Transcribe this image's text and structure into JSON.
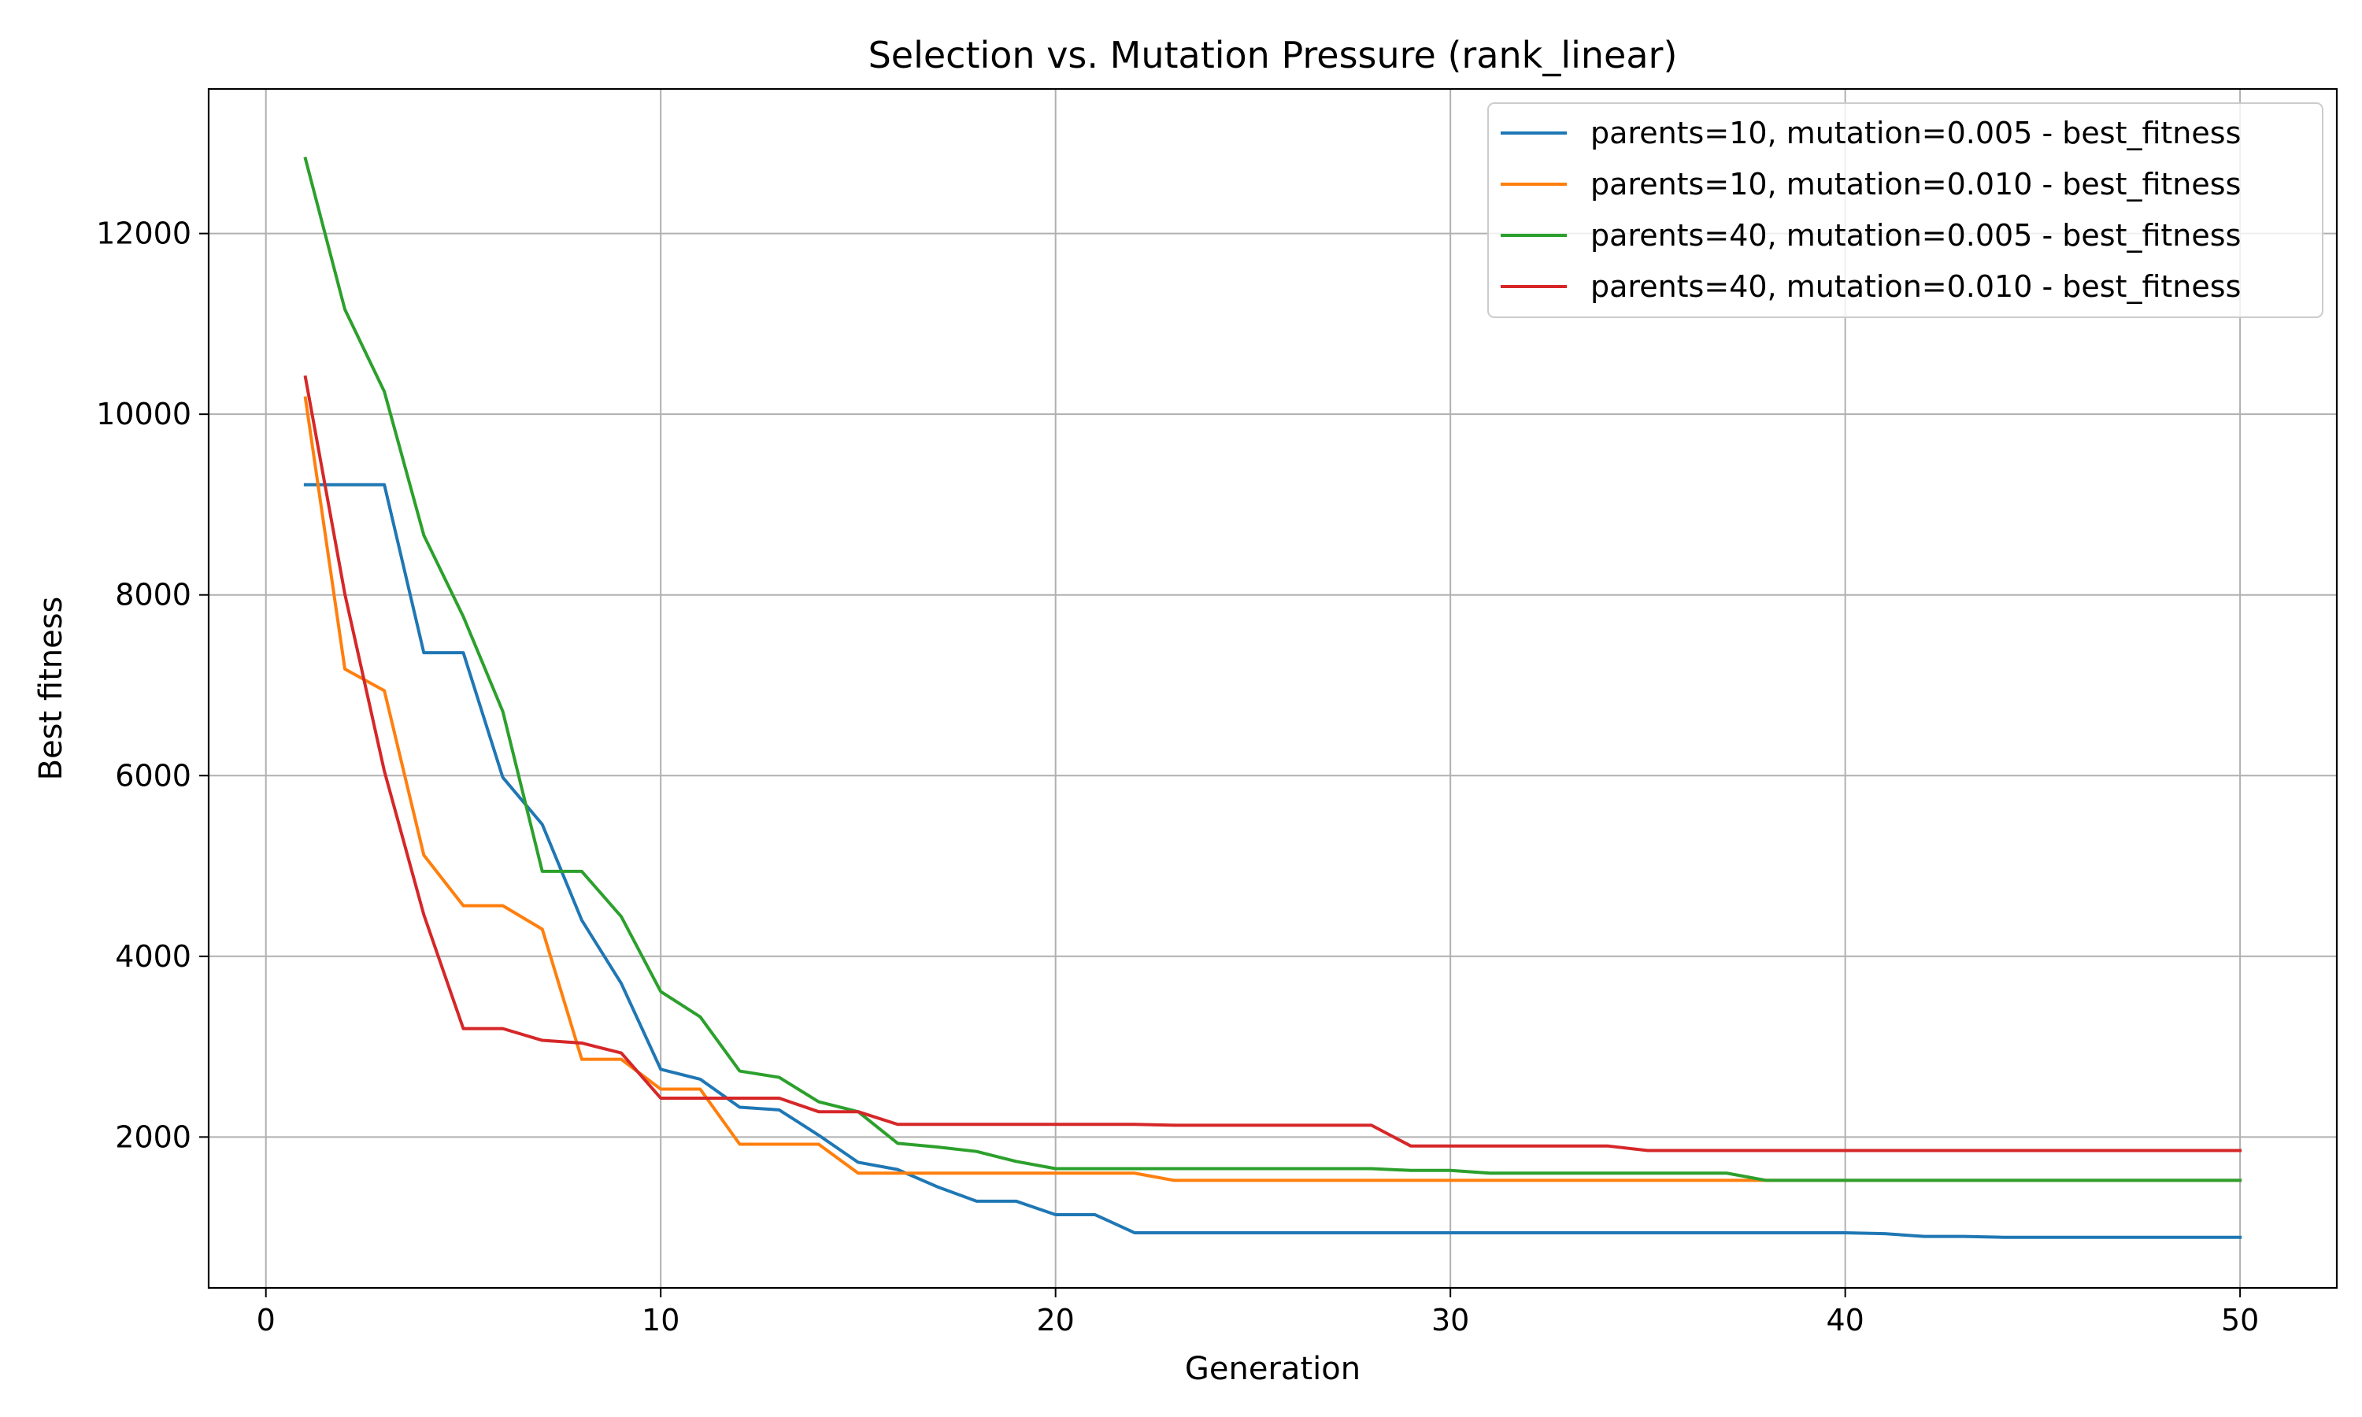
{
  "chart_data": {
    "type": "line",
    "title": "Selection vs. Mutation Pressure (rank_linear)",
    "xlabel": "Generation",
    "ylabel": "Best fitness",
    "xlim": [
      -1.45,
      52.45
    ],
    "ylim": [
      330,
      13600
    ],
    "xticks": [
      0,
      10,
      20,
      30,
      40,
      50
    ],
    "yticks": [
      2000,
      4000,
      6000,
      8000,
      10000,
      12000
    ],
    "grid": true,
    "legend_position": "top-right",
    "x": [
      1,
      2,
      3,
      4,
      5,
      6,
      7,
      8,
      9,
      10,
      11,
      12,
      13,
      14,
      15,
      16,
      17,
      18,
      19,
      20,
      21,
      22,
      23,
      24,
      25,
      26,
      27,
      28,
      29,
      30,
      31,
      32,
      33,
      34,
      35,
      36,
      37,
      38,
      39,
      40,
      41,
      42,
      43,
      44,
      45,
      46,
      47,
      48,
      49,
      50
    ],
    "series": [
      {
        "name": "parents=10, mutation=0.005 - best_fitness",
        "color": "#1f77b4",
        "values": [
          9220,
          9220,
          9220,
          7360,
          7360,
          5980,
          5460,
          4400,
          3700,
          2750,
          2640,
          2330,
          2300,
          2020,
          1720,
          1640,
          1450,
          1290,
          1290,
          1140,
          1140,
          940,
          940,
          940,
          940,
          940,
          940,
          940,
          940,
          940,
          940,
          940,
          940,
          940,
          940,
          940,
          940,
          940,
          940,
          940,
          930,
          900,
          900,
          890,
          890,
          890,
          890,
          890,
          890,
          890
        ]
      },
      {
        "name": "parents=10, mutation=0.010 - best_fitness",
        "color": "#ff7f0e",
        "values": [
          10180,
          7180,
          6940,
          5120,
          4560,
          4560,
          4300,
          2860,
          2860,
          2530,
          2530,
          1920,
          1920,
          1920,
          1600,
          1600,
          1600,
          1600,
          1600,
          1600,
          1600,
          1600,
          1520,
          1520,
          1520,
          1520,
          1520,
          1520,
          1520,
          1520,
          1520,
          1520,
          1520,
          1520,
          1520,
          1520,
          1520,
          1520,
          1520,
          1520,
          1520,
          1520,
          1520,
          1520,
          1520,
          1520,
          1520,
          1520,
          1520,
          1520
        ]
      },
      {
        "name": "parents=40, mutation=0.005 - best_fitness",
        "color": "#2ca02c",
        "values": [
          12830,
          11160,
          10250,
          8660,
          7760,
          6710,
          4940,
          4940,
          4440,
          3610,
          3330,
          2730,
          2660,
          2390,
          2280,
          1930,
          1890,
          1840,
          1730,
          1650,
          1650,
          1650,
          1650,
          1650,
          1650,
          1650,
          1650,
          1650,
          1630,
          1630,
          1600,
          1600,
          1600,
          1600,
          1600,
          1600,
          1600,
          1520,
          1520,
          1520,
          1520,
          1520,
          1520,
          1520,
          1520,
          1520,
          1520,
          1520,
          1520,
          1520
        ]
      },
      {
        "name": "parents=40, mutation=0.010 - best_fitness",
        "color": "#d62728",
        "values": [
          10410,
          8010,
          6050,
          4460,
          3200,
          3200,
          3070,
          3040,
          2930,
          2430,
          2430,
          2430,
          2430,
          2280,
          2280,
          2140,
          2140,
          2140,
          2140,
          2140,
          2140,
          2140,
          2130,
          2130,
          2130,
          2130,
          2130,
          2130,
          1900,
          1900,
          1900,
          1900,
          1900,
          1900,
          1850,
          1850,
          1850,
          1850,
          1850,
          1850,
          1850,
          1850,
          1850,
          1850,
          1850,
          1850,
          1850,
          1850,
          1850,
          1850
        ]
      }
    ]
  }
}
